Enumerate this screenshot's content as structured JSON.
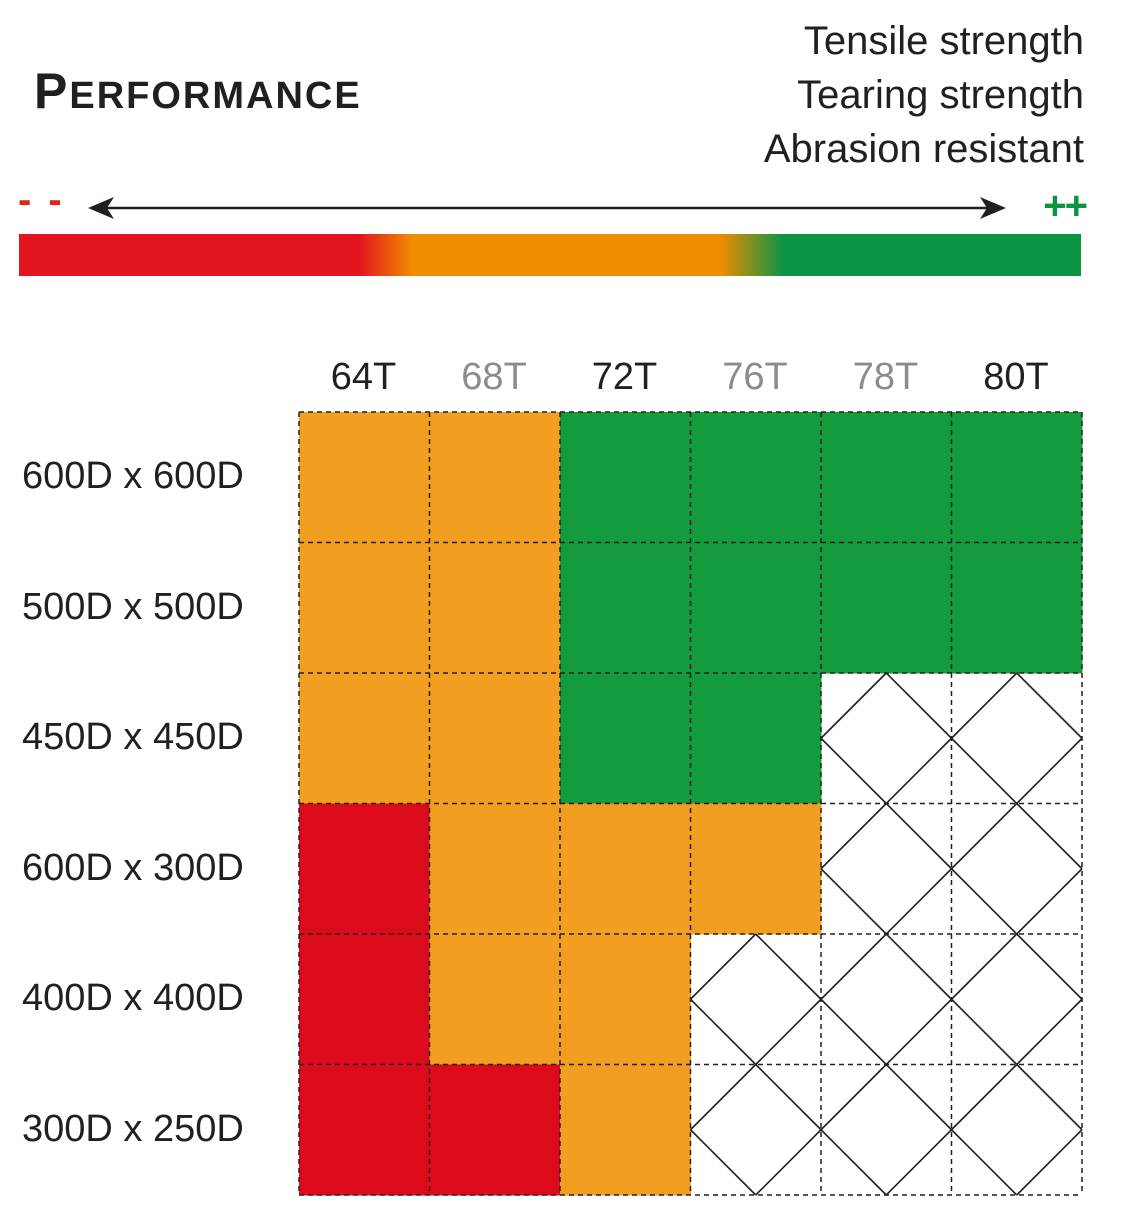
{
  "title": "Performance",
  "title_initial": "P",
  "title_rest": "ERFORMANCE",
  "properties": [
    "Tensile strength",
    "Tearing strength",
    "Abrasion resistant"
  ],
  "scale": {
    "low_label": "- -",
    "high_label": "++"
  },
  "colors": {
    "red": "#dc0b1b",
    "orange": "#f29f21",
    "green": "#139b3e",
    "gradient_red": "#e2141e",
    "gradient_orange": "#f08c00",
    "gradient_green": "#0b9444"
  },
  "chart_data": {
    "type": "heatmap",
    "x": [
      "64T",
      "68T",
      "72T",
      "76T",
      "78T",
      "80T"
    ],
    "x_colors": [
      "#231f20",
      "#8c8c8c",
      "#231f20",
      "#8c8c8c",
      "#8c8c8c",
      "#231f20"
    ],
    "y": [
      "600D x 600D",
      "500D x 500D",
      "450D x 450D",
      "600D x 300D",
      "400D x 400D",
      "300D x 250D"
    ],
    "legend": {
      "red": "- -",
      "orange": "",
      "green": "++"
    },
    "values": [
      [
        "orange",
        "orange",
        "green",
        "green",
        "green",
        "green"
      ],
      [
        "orange",
        "orange",
        "green",
        "green",
        "green",
        "green"
      ],
      [
        "orange",
        "orange",
        "green",
        "green",
        "none",
        "none"
      ],
      [
        "red",
        "orange",
        "orange",
        "orange",
        "none",
        "none"
      ],
      [
        "red",
        "orange",
        "orange",
        "none",
        "none",
        "none"
      ],
      [
        "red",
        "red",
        "orange",
        "none",
        "none",
        "none"
      ]
    ]
  }
}
